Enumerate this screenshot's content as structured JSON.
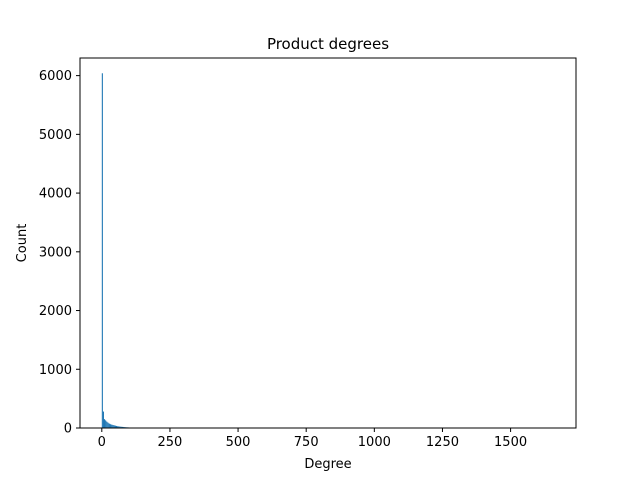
{
  "chart_data": {
    "type": "bar",
    "title": "Product degrees",
    "xlabel": "Degree",
    "ylabel": "Count",
    "xlim": [
      -80,
      1740
    ],
    "ylim": [
      0,
      6300
    ],
    "xticks": [
      0,
      250,
      500,
      750,
      1000,
      1250,
      1500
    ],
    "yticks": [
      0,
      1000,
      2000,
      3000,
      4000,
      5000,
      6000
    ],
    "bin_width": 4,
    "bins": [
      {
        "x": 0,
        "count": 6040
      },
      {
        "x": 4,
        "count": 280
      },
      {
        "x": 8,
        "count": 150
      },
      {
        "x": 12,
        "count": 130
      },
      {
        "x": 16,
        "count": 110
      },
      {
        "x": 20,
        "count": 95
      },
      {
        "x": 24,
        "count": 80
      },
      {
        "x": 28,
        "count": 70
      },
      {
        "x": 32,
        "count": 60
      },
      {
        "x": 36,
        "count": 55
      },
      {
        "x": 40,
        "count": 50
      },
      {
        "x": 44,
        "count": 45
      },
      {
        "x": 48,
        "count": 40
      },
      {
        "x": 52,
        "count": 35
      },
      {
        "x": 56,
        "count": 30
      },
      {
        "x": 60,
        "count": 28
      },
      {
        "x": 64,
        "count": 25
      },
      {
        "x": 68,
        "count": 22
      },
      {
        "x": 72,
        "count": 20
      },
      {
        "x": 76,
        "count": 18
      },
      {
        "x": 80,
        "count": 16
      },
      {
        "x": 84,
        "count": 14
      },
      {
        "x": 88,
        "count": 12
      },
      {
        "x": 92,
        "count": 11
      },
      {
        "x": 96,
        "count": 10
      },
      {
        "x": 100,
        "count": 6
      },
      {
        "x": 110,
        "count": 4
      },
      {
        "x": 125,
        "count": 3
      },
      {
        "x": 150,
        "count": 2
      },
      {
        "x": 200,
        "count": 1
      },
      {
        "x": 300,
        "count": 1
      },
      {
        "x": 1650,
        "count": 1
      }
    ],
    "bar_color": "#1f77b4",
    "grid": false,
    "legend": "none"
  }
}
